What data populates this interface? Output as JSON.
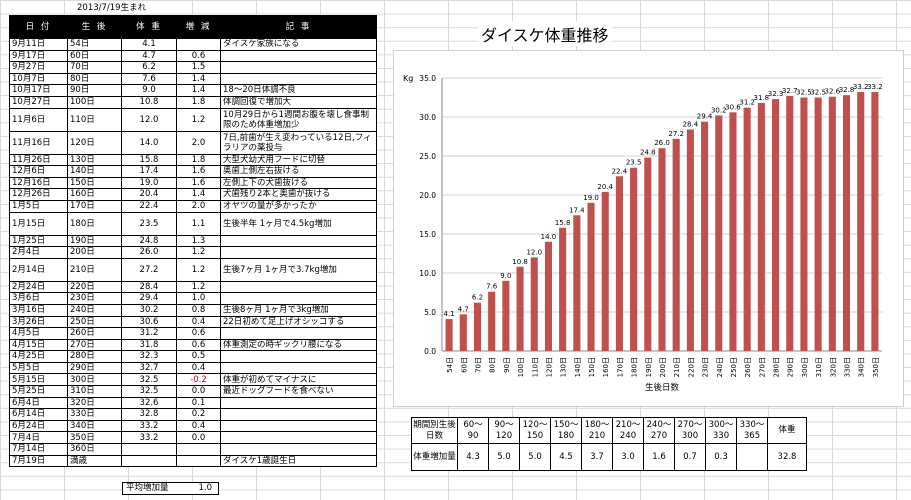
{
  "birth_label": "2013/7/19生まれ",
  "log_headers": [
    "日 付",
    "生 後",
    "体 重",
    "増 減",
    "記 事"
  ],
  "log_rows": [
    {
      "date": "9月11日",
      "age": "54日",
      "weight": "4.1",
      "diff": "",
      "note": "ダイスケ家族になる"
    },
    {
      "date": "9月17日",
      "age": "60日",
      "weight": "4.7",
      "diff": "0.6",
      "note": ""
    },
    {
      "date": "9月27日",
      "age": "70日",
      "weight": "6.2",
      "diff": "1.5",
      "note": ""
    },
    {
      "date": "10月7日",
      "age": "80日",
      "weight": "7.6",
      "diff": "1.4",
      "note": ""
    },
    {
      "date": "10月17日",
      "age": "90日",
      "weight": "9.0",
      "diff": "1.4",
      "note": "18～20日体調不良"
    },
    {
      "date": "10月27日",
      "age": "100日",
      "weight": "10.8",
      "diff": "1.8",
      "note": "体調回復で増加大"
    },
    {
      "date": "11月6日",
      "age": "110日",
      "weight": "12.0",
      "diff": "1.2",
      "note": "10月29日から1週間お腹を壊し食事制限のため体重増加少"
    },
    {
      "date": "11月16日",
      "age": "120日",
      "weight": "14.0",
      "diff": "2.0",
      "note": "7日,前歯が生え変わっている12日,フィラリアの薬投与"
    },
    {
      "date": "11月26日",
      "age": "130日",
      "weight": "15.8",
      "diff": "1.8",
      "note": "大型犬幼犬用フードに切替"
    },
    {
      "date": "12月6日",
      "age": "140日",
      "weight": "17.4",
      "diff": "1.6",
      "note": "奥歯上側左右抜ける"
    },
    {
      "date": "12月16日",
      "age": "150日",
      "weight": "19.0",
      "diff": "1.6",
      "note": "左側上下の犬歯抜ける"
    },
    {
      "date": "12月26日",
      "age": "160日",
      "weight": "20.4",
      "diff": "1.4",
      "note": "犬歯残り2本と奥歯が抜ける"
    },
    {
      "date": "1月5日",
      "age": "170日",
      "weight": "22.4",
      "diff": "2.0",
      "note": "オヤツの量が多かったか"
    },
    {
      "date": "1月15日",
      "age": "180日",
      "weight": "23.5",
      "diff": "1.1",
      "note": "生後半年 1ヶ月で4.5kg増加"
    },
    {
      "date": "1月25日",
      "age": "190日",
      "weight": "24.8",
      "diff": "1.3",
      "note": ""
    },
    {
      "date": "2月4日",
      "age": "200日",
      "weight": "26.0",
      "diff": "1.2",
      "note": ""
    },
    {
      "date": "2月14日",
      "age": "210日",
      "weight": "27.2",
      "diff": "1.2",
      "note": "生後7ヶ月 1ヶ月で3.7kg増加"
    },
    {
      "date": "2月24日",
      "age": "220日",
      "weight": "28.4",
      "diff": "1.2",
      "note": ""
    },
    {
      "date": "3月6日",
      "age": "230日",
      "weight": "29.4",
      "diff": "1.0",
      "note": ""
    },
    {
      "date": "3月16日",
      "age": "240日",
      "weight": "30.2",
      "diff": "0.8",
      "note": "生後8ヶ月 1ヶ月で3kg増加"
    },
    {
      "date": "3月26日",
      "age": "250日",
      "weight": "30.6",
      "diff": "0.4",
      "note": "22日初めて足上げオシッコする"
    },
    {
      "date": "4月5日",
      "age": "260日",
      "weight": "31.2",
      "diff": "0.6",
      "note": ""
    },
    {
      "date": "4月15日",
      "age": "270日",
      "weight": "31.8",
      "diff": "0.6",
      "note": "体重測定の時ギックリ腰になる"
    },
    {
      "date": "4月25日",
      "age": "280日",
      "weight": "32.3",
      "diff": "0.5",
      "note": ""
    },
    {
      "date": "5月5日",
      "age": "290日",
      "weight": "32.7",
      "diff": "0.4",
      "note": ""
    },
    {
      "date": "5月15日",
      "age": "300日",
      "weight": "32.5",
      "diff": "-0.2",
      "note": "体重が初めてマイナスに"
    },
    {
      "date": "5月25日",
      "age": "310日",
      "weight": "32.5",
      "diff": "0.0",
      "note": "最近ドッグフードを食べない"
    },
    {
      "date": "6月4日",
      "age": "320日",
      "weight": "32.6",
      "diff": "0.1",
      "note": ""
    },
    {
      "date": "6月14日",
      "age": "330日",
      "weight": "32.8",
      "diff": "0.2",
      "note": ""
    },
    {
      "date": "6月24日",
      "age": "340日",
      "weight": "33.2",
      "diff": "0.4",
      "note": ""
    },
    {
      "date": "7月4日",
      "age": "350日",
      "weight": "33.2",
      "diff": "0.0",
      "note": ""
    },
    {
      "date": "7月14日",
      "age": "360日",
      "weight": "",
      "diff": "",
      "note": ""
    },
    {
      "date": "7月19日",
      "age": "満歳",
      "weight": "",
      "diff": "",
      "note": "ダイスケ1歳誕生日"
    }
  ],
  "average_label": "平均増加量",
  "average_value": "1.0",
  "chart_data": {
    "type": "bar",
    "title": "ダイスケ体重推移",
    "ylabel": "Kg",
    "xlabel": "生後日数",
    "ylim": [
      0,
      35
    ],
    "yticks": [
      "0.0",
      "5.0",
      "10.0",
      "15.0",
      "20.0",
      "25.0",
      "30.0",
      "35.0"
    ],
    "categories": [
      "54日",
      "60日",
      "70日",
      "80日",
      "90日",
      "100日",
      "110日",
      "120日",
      "130日",
      "140日",
      "150日",
      "160日",
      "170日",
      "180日",
      "190日",
      "200日",
      "210日",
      "220日",
      "230日",
      "240日",
      "250日",
      "260日",
      "270日",
      "280日",
      "290日",
      "300日",
      "310日",
      "320日",
      "330日",
      "340日",
      "350日"
    ],
    "values": [
      4.1,
      4.7,
      6.2,
      7.6,
      9.0,
      10.8,
      12.0,
      14.0,
      15.8,
      17.4,
      19.0,
      20.4,
      22.4,
      23.5,
      24.8,
      26.0,
      27.2,
      28.4,
      29.4,
      30.2,
      30.6,
      31.2,
      31.8,
      32.3,
      32.7,
      32.5,
      32.5,
      32.6,
      32.8,
      33.2,
      33.2
    ],
    "data_labels": [
      "4.1",
      "4.7",
      "6.2",
      "7.6",
      "9.0",
      "10.8",
      "12.0",
      "14.0",
      "15.8",
      "17.4",
      "19.0",
      "20.4",
      "22.4",
      "23.5",
      "24.8",
      "26.0",
      "27.2",
      "28.4",
      "29.4",
      "30.2",
      "30.6",
      "31.2",
      "31.8",
      "32.3",
      "32.7",
      "32.5",
      "32.5",
      "32.6",
      "32.8",
      "33.2",
      "33.2"
    ],
    "bar_color": "#c0504d",
    "grid": true
  },
  "summary": {
    "row1_label": "期間別生後日数",
    "row2_label": "体重増加量",
    "periods": [
      "60～90",
      "90～120",
      "120～150",
      "150～180",
      "180～210",
      "210～240",
      "240～270",
      "270～300",
      "300～330",
      "330～365"
    ],
    "gains": [
      "4.3",
      "5.0",
      "5.0",
      "4.5",
      "3.7",
      "3.0",
      "1.6",
      "0.7",
      "0.3",
      ""
    ],
    "total_label": "体重",
    "total_value": "32.8"
  }
}
